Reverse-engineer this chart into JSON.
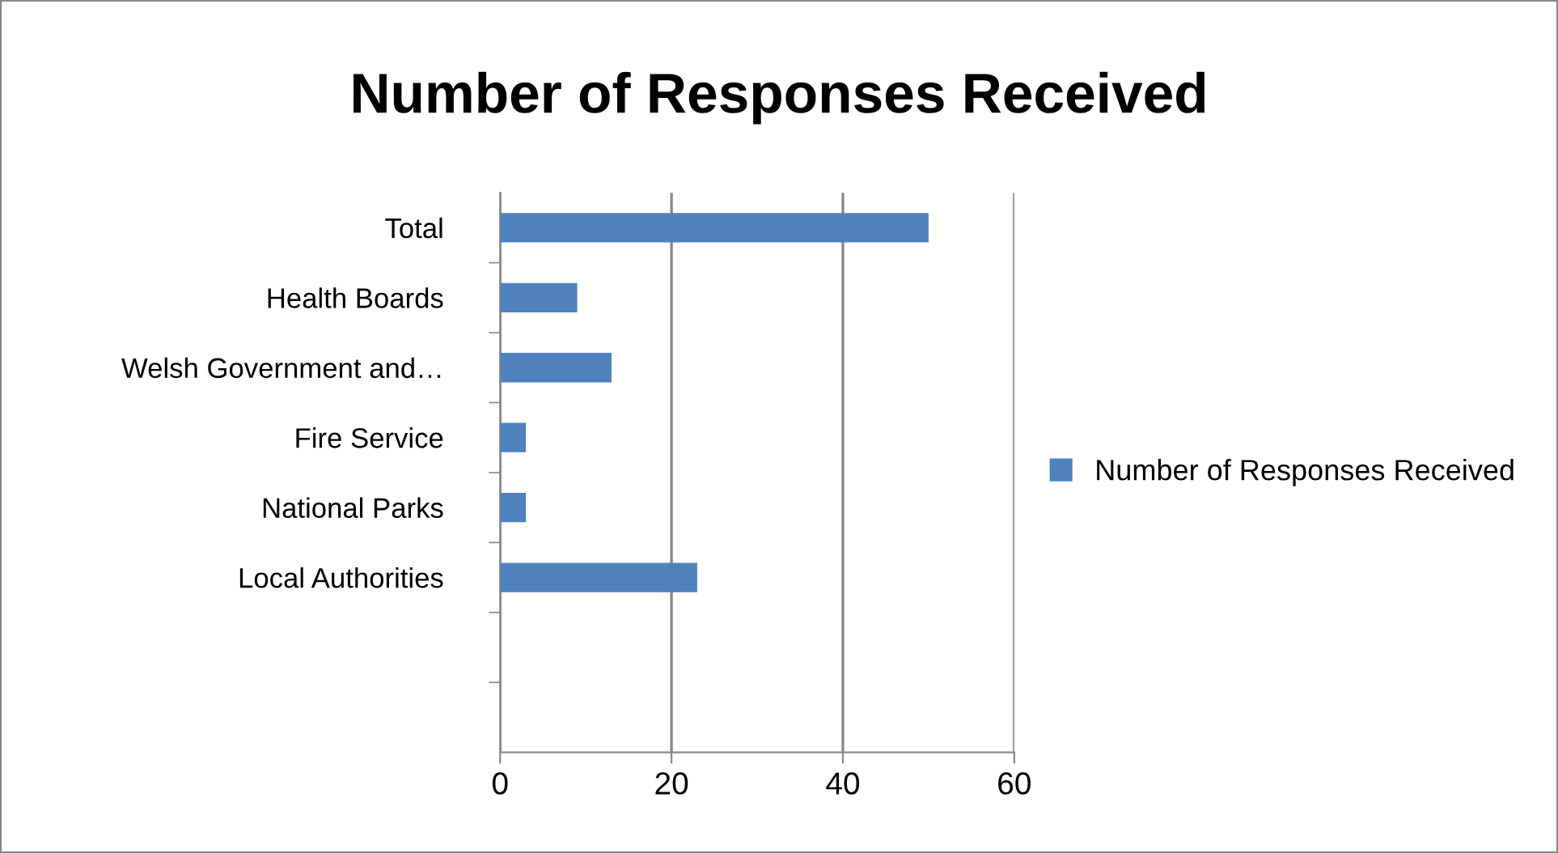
{
  "chart_data": {
    "type": "bar",
    "orientation": "horizontal",
    "title": "Number of Responses Received",
    "categories": [
      "Total",
      "Health Boards",
      "Welsh Government and…",
      "Fire Service",
      "National Parks",
      "Local Authorities",
      null,
      null
    ],
    "series": [
      {
        "name": "Number of Responses Received",
        "color": "#4f81bd",
        "values": [
          50,
          9,
          13,
          3,
          3,
          23,
          null,
          null
        ]
      }
    ],
    "xlim": [
      0,
      60
    ],
    "xticks": [
      0,
      20,
      40,
      60
    ],
    "grid": "x",
    "legend": "right"
  }
}
